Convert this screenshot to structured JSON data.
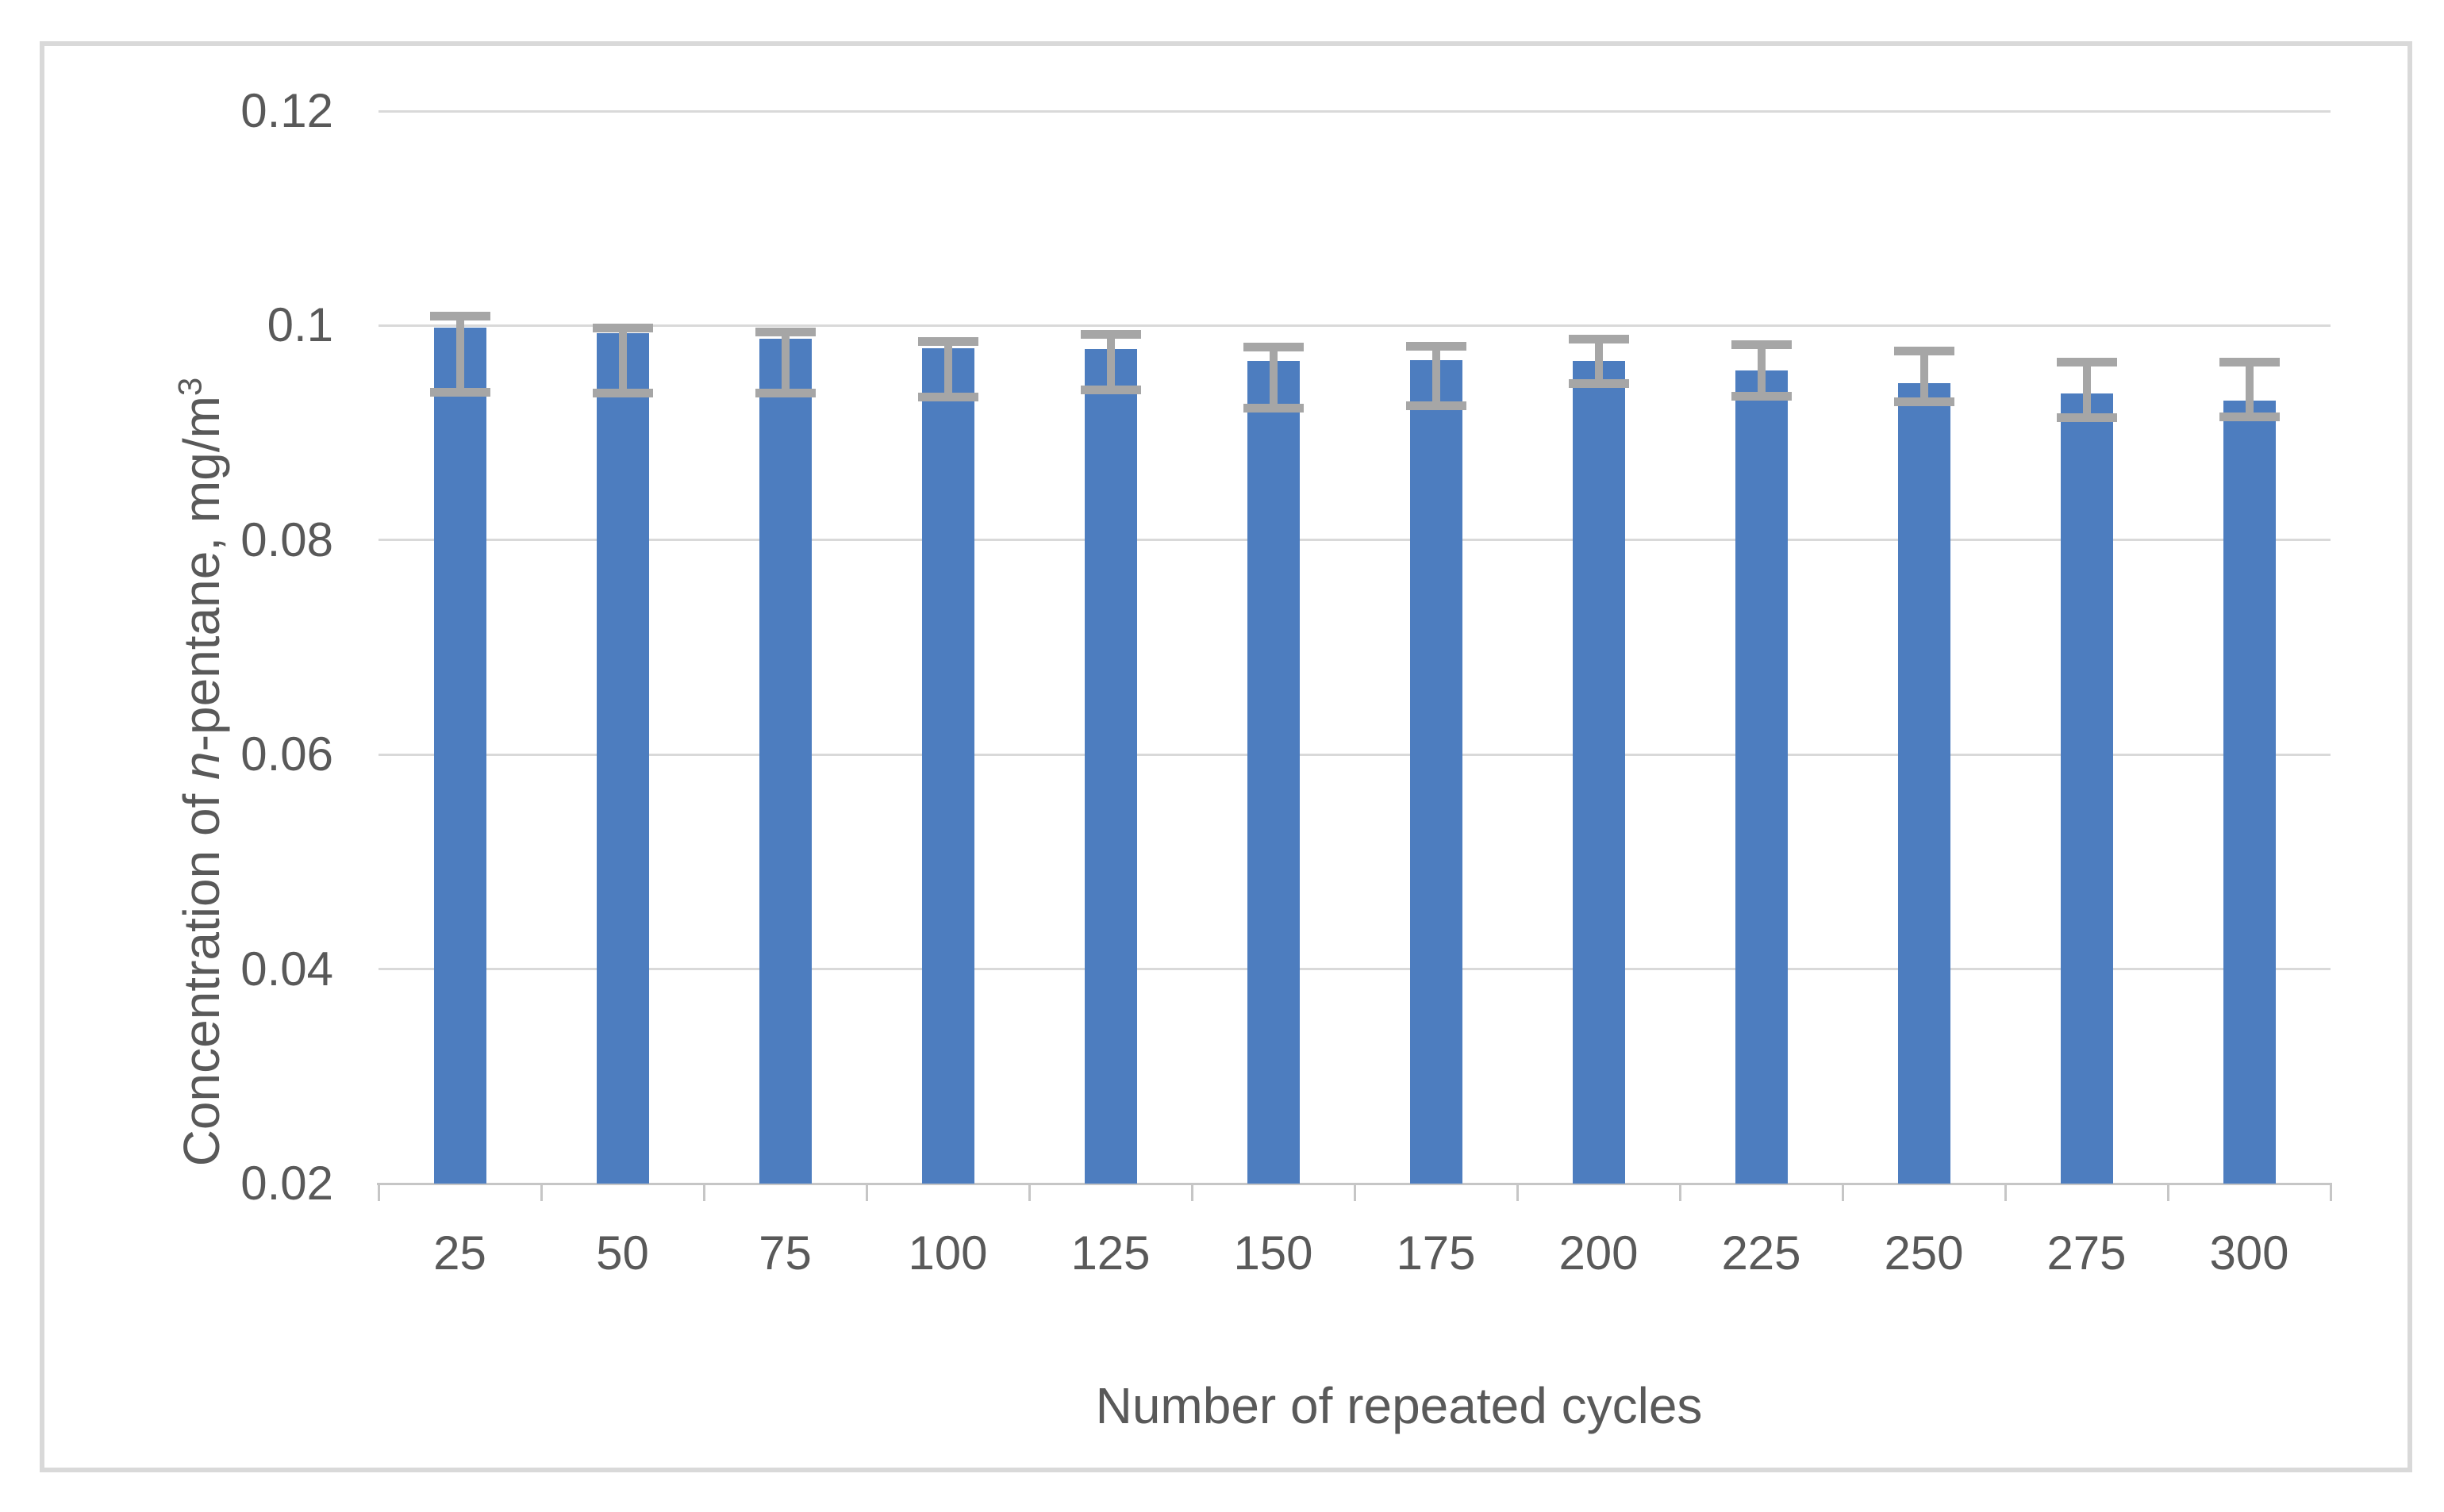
{
  "figure": {
    "x_axis_title": "Number of repeated cycles",
    "y_axis_title": {
      "prefix": "Concentration of ",
      "italic_part": "n",
      "suffix": "-pentane, mg/m",
      "superscript": "3"
    }
  },
  "chart_data": {
    "type": "bar",
    "title": "",
    "xlabel": "Number of repeated cycles",
    "ylabel": "Concentration of n-pentane, mg/m³",
    "legend": "none",
    "grid": "horizontal-only",
    "ylim": [
      0.02,
      0.12
    ],
    "categories": [
      25,
      50,
      75,
      100,
      125,
      150,
      175,
      200,
      225,
      250,
      275,
      300
    ],
    "x_tick_labels": [
      "25",
      "50",
      "75",
      "100",
      "125",
      "150",
      "175",
      "200",
      "225",
      "250",
      "275",
      "300"
    ],
    "values": [
      0.0998,
      0.0993,
      0.0988,
      0.0979,
      0.0978,
      0.0967,
      0.0968,
      0.0967,
      0.0958,
      0.0946,
      0.0937,
      0.093
    ],
    "error_top_cap": [
      0.1009,
      0.0998,
      0.0994,
      0.0985,
      0.0992,
      0.098,
      0.0981,
      0.0987,
      0.0982,
      0.0976,
      0.0966,
      0.0966
    ],
    "error_bottom_cap": [
      0.0938,
      0.0937,
      0.0937,
      0.0933,
      0.094,
      0.0923,
      0.0925,
      0.0946,
      0.0934,
      0.0929,
      0.0914,
      0.0915
    ],
    "y_ticks": [
      {
        "label": "0.12",
        "value": 0.12
      },
      {
        "label": "0.1",
        "value": 0.1
      },
      {
        "label": "0.08",
        "value": 0.08
      },
      {
        "label": "0.06",
        "value": 0.06
      },
      {
        "label": "0.04",
        "value": 0.04
      },
      {
        "label": "0.02",
        "value": 0.02
      }
    ],
    "colors": {
      "bar": "#4d7dbf",
      "error_bar": "#a6a6a6",
      "gridline": "#d9d9d9",
      "axis_line": "#c6c6c6",
      "text": "#595959",
      "frame_border": "#d9d9d9",
      "background": "#ffffff"
    }
  }
}
